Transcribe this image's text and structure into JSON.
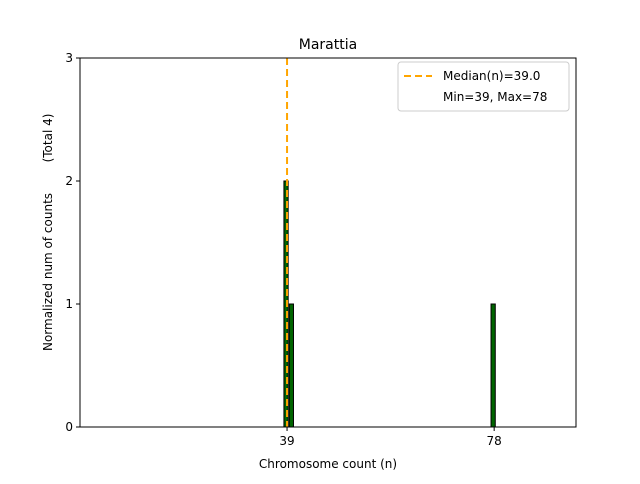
{
  "chart_data": {
    "type": "bar",
    "title": "Marattia",
    "xlabel": "Chromosome count (n)",
    "ylabel": "Normalized num of counts",
    "ylabel_note": "(Total 4)",
    "xlim": [
      0.2,
      93.6
    ],
    "ylim": [
      0,
      3
    ],
    "xticks": [
      39,
      78
    ],
    "yticks": [
      0,
      1,
      2,
      3
    ],
    "bar_width": 0.8,
    "bars": [
      {
        "x": 39,
        "value": 2
      },
      {
        "x": 40,
        "value": 1
      },
      {
        "x": 78,
        "value": 1
      }
    ],
    "median": 39.0,
    "legend": {
      "placement": "top-right",
      "entries": [
        "Median(n)=39.0",
        "Min=39, Max=78"
      ]
    },
    "colors": {
      "bar": "#006400",
      "edge": "#000000",
      "median": "#FFA500"
    }
  }
}
